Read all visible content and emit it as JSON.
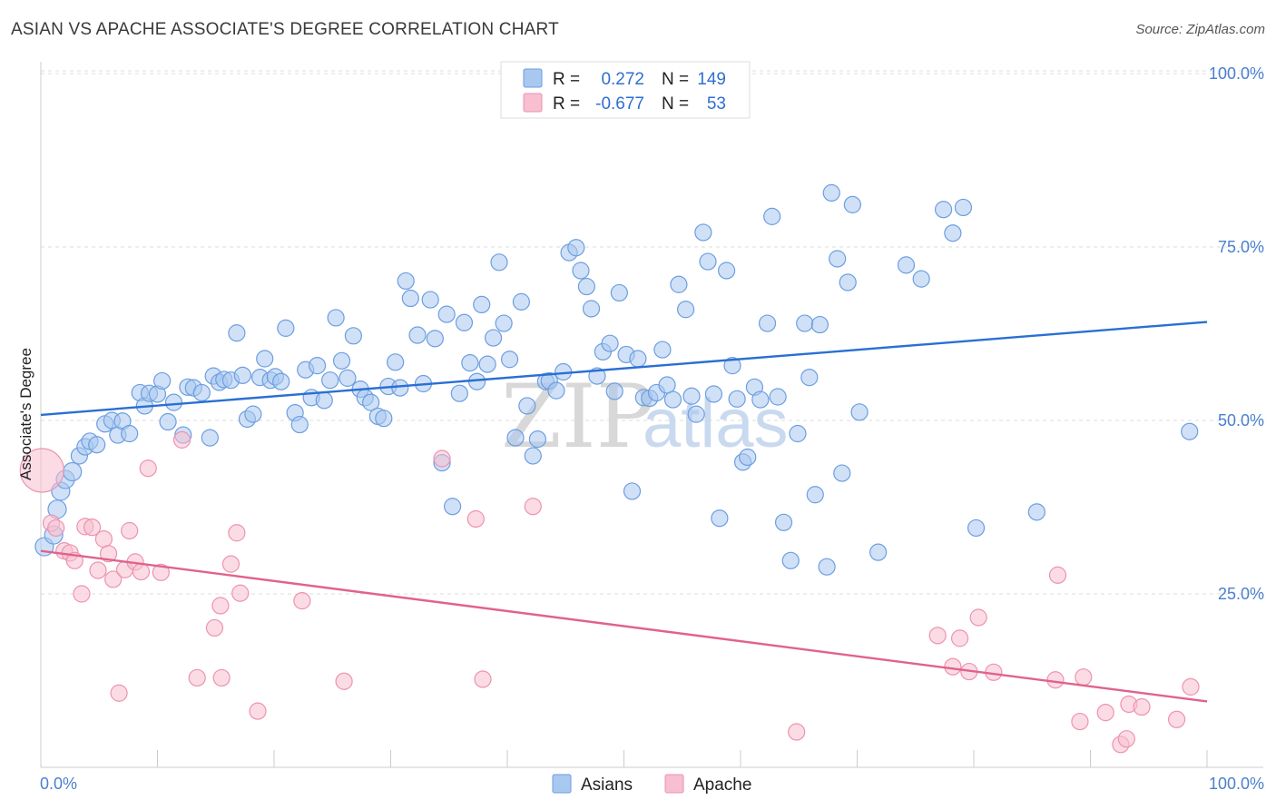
{
  "title": "ASIAN VS APACHE ASSOCIATE'S DEGREE CORRELATION CHART",
  "source": "Source: ZipAtlas.com",
  "watermark": {
    "zip": "ZIP",
    "atlas": "atlas"
  },
  "colors": {
    "asian_fill": "#a9c8f0",
    "asian_stroke": "#6c9ee0",
    "asian_line": "#2a6fd3",
    "apache_fill": "#f7bfd0",
    "apache_stroke": "#ee92b0",
    "apache_line": "#e0628e",
    "tick_text": "#4a7fcf",
    "grid": "#dddddd"
  },
  "legend_top": {
    "rows": [
      {
        "r_label": "R =",
        "r_value": "0.272",
        "n_label": "N =",
        "n_value": "149"
      },
      {
        "r_label": "R =",
        "r_value": "-0.677",
        "n_label": "N =",
        "n_value": "53"
      }
    ]
  },
  "legend_bottom": [
    "Asians",
    "Apache"
  ],
  "chart_data": {
    "type": "scatter",
    "title": "ASIAN VS APACHE ASSOCIATE'S DEGREE CORRELATION CHART",
    "xlabel": "",
    "ylabel": "Associate's Degree",
    "xlim": [
      0,
      100
    ],
    "ylim": [
      0,
      100
    ],
    "x_tick_labels": [
      "0.0%",
      "100.0%"
    ],
    "y_ticks": [
      25,
      50,
      75,
      100
    ],
    "y_tick_labels": [
      "25.0%",
      "50.0%",
      "75.0%",
      "100.0%"
    ],
    "grid": "horizontal dashed",
    "legend_placement": "top-center",
    "series": [
      {
        "name": "Asians",
        "r": 0.272,
        "n": 149,
        "trend": {
          "x0": 0,
          "y0": 50.8,
          "x1": 100,
          "y1": 64.2
        },
        "points": [
          [
            0.3,
            31.8
          ],
          [
            1.1,
            33.5
          ],
          [
            1.4,
            37.2
          ],
          [
            1.7,
            39.8
          ],
          [
            2.1,
            41.5
          ],
          [
            2.7,
            42.6
          ],
          [
            3.3,
            44.9
          ],
          [
            3.8,
            46.2
          ],
          [
            4.2,
            47.0
          ],
          [
            4.8,
            46.5
          ],
          [
            5.5,
            49.5
          ],
          [
            6.1,
            50.0
          ],
          [
            6.6,
            47.9
          ],
          [
            7.0,
            49.9
          ],
          [
            7.6,
            48.1
          ],
          [
            8.5,
            54.0
          ],
          [
            8.9,
            52.1
          ],
          [
            9.3,
            53.9
          ],
          [
            10.0,
            53.8
          ],
          [
            10.4,
            55.7
          ],
          [
            10.9,
            49.8
          ],
          [
            11.4,
            52.6
          ],
          [
            12.2,
            47.9
          ],
          [
            12.6,
            54.8
          ],
          [
            13.1,
            54.7
          ],
          [
            13.8,
            54.0
          ],
          [
            14.5,
            47.5
          ],
          [
            14.8,
            56.4
          ],
          [
            15.3,
            55.5
          ],
          [
            15.7,
            55.9
          ],
          [
            16.3,
            55.8
          ],
          [
            16.8,
            62.6
          ],
          [
            17.3,
            56.5
          ],
          [
            17.7,
            50.2
          ],
          [
            18.2,
            50.9
          ],
          [
            18.8,
            56.2
          ],
          [
            19.2,
            58.9
          ],
          [
            19.7,
            55.8
          ],
          [
            20.1,
            56.3
          ],
          [
            20.6,
            55.6
          ],
          [
            21.0,
            63.3
          ],
          [
            21.8,
            51.1
          ],
          [
            22.2,
            49.4
          ],
          [
            22.7,
            57.3
          ],
          [
            23.2,
            53.3
          ],
          [
            23.7,
            57.9
          ],
          [
            24.3,
            52.9
          ],
          [
            24.8,
            55.8
          ],
          [
            25.3,
            64.8
          ],
          [
            25.8,
            58.6
          ],
          [
            26.3,
            56.1
          ],
          [
            26.8,
            62.2
          ],
          [
            27.4,
            54.5
          ],
          [
            27.8,
            53.3
          ],
          [
            28.3,
            52.6
          ],
          [
            28.9,
            50.6
          ],
          [
            29.4,
            50.3
          ],
          [
            29.8,
            54.9
          ],
          [
            30.4,
            58.4
          ],
          [
            30.8,
            54.7
          ],
          [
            31.3,
            70.1
          ],
          [
            31.7,
            67.6
          ],
          [
            32.3,
            62.3
          ],
          [
            32.8,
            55.3
          ],
          [
            33.4,
            67.4
          ],
          [
            33.8,
            61.8
          ],
          [
            34.4,
            43.9
          ],
          [
            34.8,
            65.3
          ],
          [
            35.3,
            37.6
          ],
          [
            35.9,
            53.9
          ],
          [
            36.3,
            64.1
          ],
          [
            36.8,
            58.3
          ],
          [
            37.4,
            55.6
          ],
          [
            37.8,
            66.7
          ],
          [
            38.3,
            58.1
          ],
          [
            38.8,
            61.9
          ],
          [
            39.3,
            72.8
          ],
          [
            39.7,
            64.0
          ],
          [
            40.2,
            58.8
          ],
          [
            40.7,
            47.5
          ],
          [
            41.2,
            67.1
          ],
          [
            41.7,
            52.1
          ],
          [
            42.2,
            44.9
          ],
          [
            42.6,
            47.3
          ],
          [
            43.3,
            55.6
          ],
          [
            43.6,
            55.7
          ],
          [
            44.2,
            54.3
          ],
          [
            44.8,
            57.0
          ],
          [
            45.3,
            74.2
          ],
          [
            45.9,
            74.9
          ],
          [
            46.3,
            71.6
          ],
          [
            46.8,
            69.3
          ],
          [
            47.2,
            66.1
          ],
          [
            47.7,
            56.4
          ],
          [
            48.2,
            59.9
          ],
          [
            48.8,
            61.1
          ],
          [
            49.2,
            54.2
          ],
          [
            49.6,
            68.4
          ],
          [
            50.2,
            59.5
          ],
          [
            50.7,
            39.8
          ],
          [
            51.2,
            58.9
          ],
          [
            51.7,
            53.3
          ],
          [
            52.2,
            53.2
          ],
          [
            52.8,
            54.0
          ],
          [
            53.3,
            60.2
          ],
          [
            53.7,
            55.1
          ],
          [
            54.2,
            53.0
          ],
          [
            54.7,
            69.6
          ],
          [
            55.3,
            66.0
          ],
          [
            55.8,
            53.5
          ],
          [
            56.2,
            50.9
          ],
          [
            56.8,
            77.1
          ],
          [
            57.2,
            72.9
          ],
          [
            57.7,
            53.8
          ],
          [
            58.2,
            35.9
          ],
          [
            58.8,
            71.6
          ],
          [
            59.3,
            57.9
          ],
          [
            59.7,
            53.1
          ],
          [
            60.2,
            44.0
          ],
          [
            60.6,
            44.7
          ],
          [
            61.2,
            54.8
          ],
          [
            61.7,
            53.0
          ],
          [
            62.3,
            64.0
          ],
          [
            62.7,
            79.4
          ],
          [
            63.2,
            53.4
          ],
          [
            63.7,
            35.3
          ],
          [
            64.3,
            29.8
          ],
          [
            64.9,
            48.1
          ],
          [
            65.5,
            64.0
          ],
          [
            65.9,
            56.2
          ],
          [
            66.4,
            39.3
          ],
          [
            66.8,
            63.8
          ],
          [
            67.4,
            28.9
          ],
          [
            67.8,
            82.8
          ],
          [
            68.3,
            73.3
          ],
          [
            68.7,
            42.4
          ],
          [
            69.2,
            69.9
          ],
          [
            69.6,
            81.1
          ],
          [
            70.2,
            51.2
          ],
          [
            71.8,
            31.0
          ],
          [
            74.2,
            72.4
          ],
          [
            75.5,
            70.4
          ],
          [
            77.4,
            80.4
          ],
          [
            78.2,
            77.0
          ],
          [
            79.1,
            80.7
          ],
          [
            80.2,
            34.5
          ],
          [
            85.4,
            36.8
          ],
          [
            98.5,
            48.4
          ]
        ]
      },
      {
        "name": "Apache",
        "r": -0.677,
        "n": 53,
        "trend": {
          "x0": 0,
          "y0": 31.2,
          "x1": 100,
          "y1": 9.5
        },
        "points": [
          [
            0.1,
            42.8
          ],
          [
            0.9,
            35.2
          ],
          [
            1.3,
            34.5
          ],
          [
            2.0,
            31.2
          ],
          [
            2.5,
            30.9
          ],
          [
            2.9,
            29.8
          ],
          [
            3.5,
            25.0
          ],
          [
            3.8,
            34.7
          ],
          [
            4.4,
            34.6
          ],
          [
            4.9,
            28.4
          ],
          [
            5.4,
            32.9
          ],
          [
            5.8,
            30.8
          ],
          [
            6.2,
            27.1
          ],
          [
            6.7,
            10.7
          ],
          [
            7.2,
            28.5
          ],
          [
            7.6,
            34.1
          ],
          [
            8.1,
            29.6
          ],
          [
            8.6,
            28.2
          ],
          [
            9.2,
            43.1
          ],
          [
            10.3,
            28.1
          ],
          [
            12.1,
            47.2
          ],
          [
            13.4,
            12.9
          ],
          [
            14.9,
            20.1
          ],
          [
            15.4,
            23.3
          ],
          [
            15.5,
            12.9
          ],
          [
            16.3,
            29.3
          ],
          [
            16.8,
            33.8
          ],
          [
            17.1,
            25.1
          ],
          [
            18.6,
            8.1
          ],
          [
            22.4,
            24.0
          ],
          [
            26.0,
            12.4
          ],
          [
            34.4,
            44.5
          ],
          [
            37.3,
            35.8
          ],
          [
            37.9,
            12.7
          ],
          [
            42.2,
            37.6
          ],
          [
            64.8,
            5.1
          ],
          [
            76.9,
            19.0
          ],
          [
            78.2,
            14.5
          ],
          [
            78.8,
            18.6
          ],
          [
            79.6,
            13.8
          ],
          [
            80.4,
            21.6
          ],
          [
            81.7,
            13.7
          ],
          [
            87.0,
            12.6
          ],
          [
            87.2,
            27.7
          ],
          [
            89.1,
            6.6
          ],
          [
            89.4,
            13.0
          ],
          [
            91.3,
            7.9
          ],
          [
            92.6,
            3.3
          ],
          [
            93.1,
            4.1
          ],
          [
            93.3,
            9.1
          ],
          [
            94.4,
            8.7
          ],
          [
            97.4,
            6.9
          ],
          [
            98.6,
            11.6
          ]
        ]
      }
    ]
  }
}
